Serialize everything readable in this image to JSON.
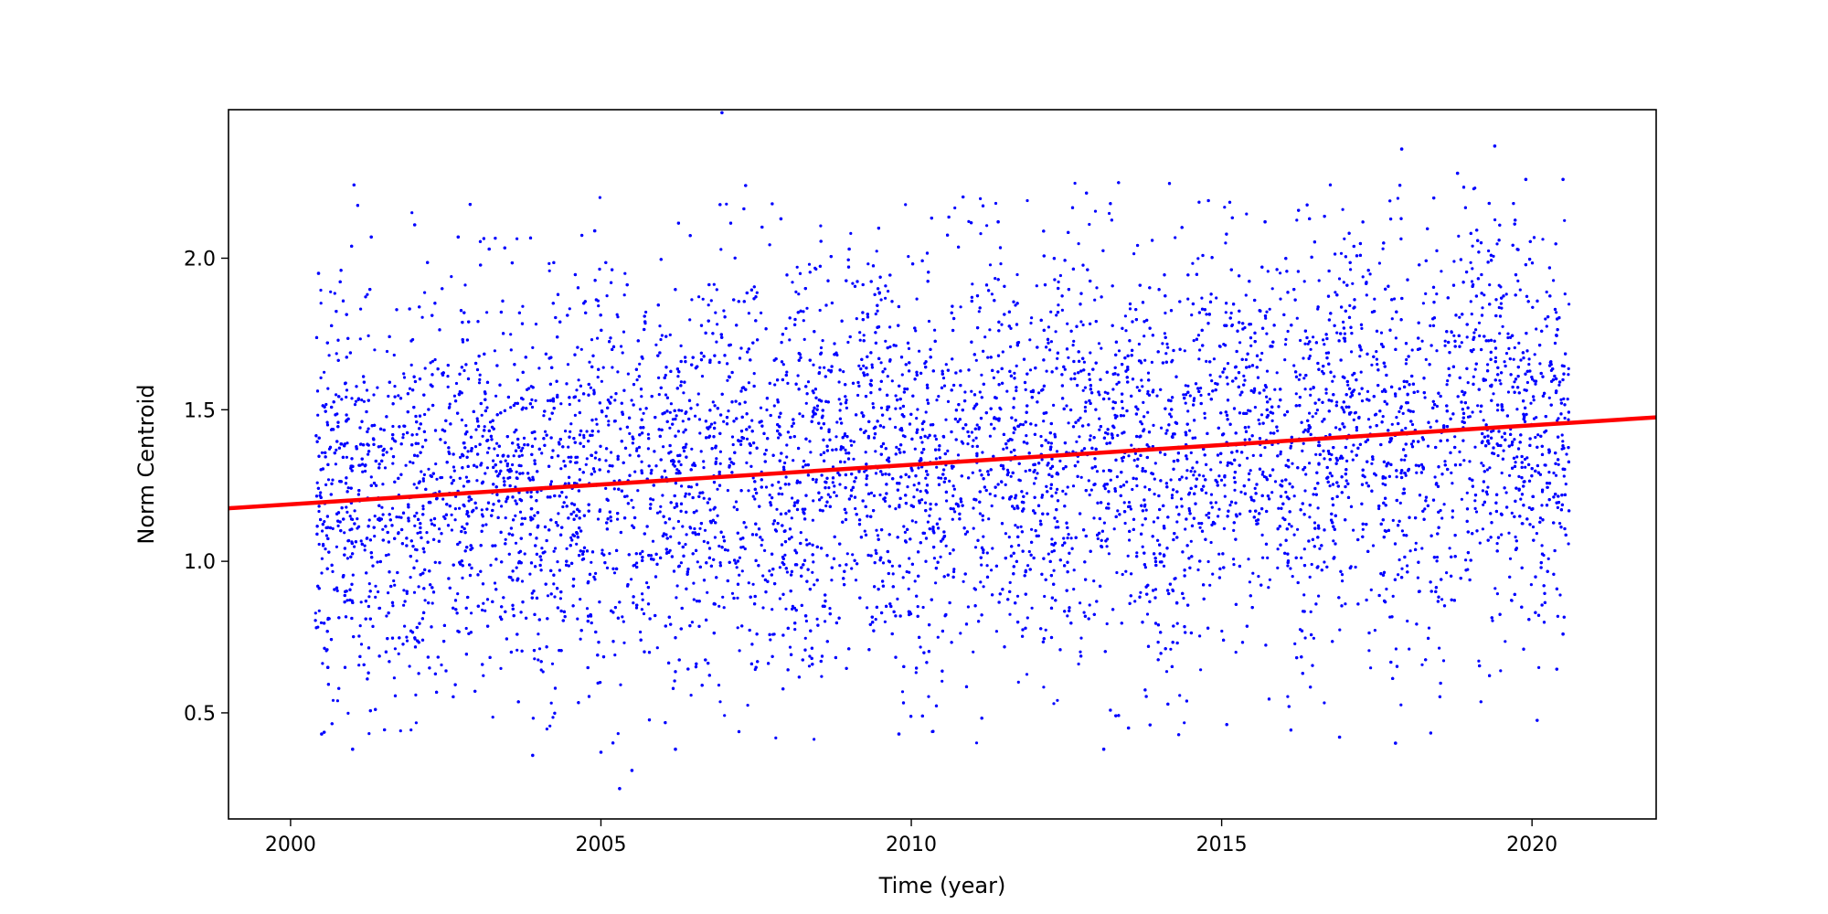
{
  "chart_data": {
    "type": "scatter",
    "title": "",
    "xlabel": "Time (year)",
    "ylabel": "Norm Centroid",
    "xlim": [
      1999.0,
      2022.0
    ],
    "ylim": [
      0.15,
      2.49
    ],
    "xticks": [
      2000,
      2005,
      2010,
      2015,
      2020
    ],
    "xtick_labels": [
      "2000",
      "2005",
      "2010",
      "2015",
      "2020"
    ],
    "yticks": [
      0.5,
      1.0,
      1.5,
      2.0
    ],
    "ytick_labels": [
      "0.5",
      "1.0",
      "1.5",
      "2.0"
    ],
    "grid": false,
    "legend": "none",
    "series": [
      {
        "kind": "scatter",
        "color": "#0000ff",
        "point_count_approx": 12000,
        "x_range": [
          2000.4,
          2020.6
        ],
        "points": [
          [
            2000.45,
            1.95
          ],
          [
            2000.5,
            0.43
          ],
          [
            2000.6,
            0.65
          ],
          [
            2001.0,
            0.38
          ],
          [
            2001.3,
            2.07
          ],
          [
            2002.0,
            2.11
          ],
          [
            2002.7,
            2.07
          ],
          [
            2003.2,
            2.03
          ],
          [
            2003.9,
            0.36
          ],
          [
            2004.9,
            2.09
          ],
          [
            2005.0,
            0.37
          ],
          [
            2005.3,
            0.25
          ],
          [
            2005.5,
            0.31
          ],
          [
            2006.2,
            0.38
          ],
          [
            2006.95,
            2.48
          ],
          [
            2007.9,
            2.13
          ],
          [
            2008.3,
            0.82
          ],
          [
            2009.0,
            2.03
          ],
          [
            2009.8,
            0.43
          ],
          [
            2011.4,
            2.12
          ],
          [
            2013.1,
            0.38
          ],
          [
            2013.5,
            0.45
          ],
          [
            2015.7,
            2.12
          ],
          [
            2016.9,
            0.42
          ],
          [
            2017.8,
            0.4
          ],
          [
            2017.9,
            2.36
          ],
          [
            2018.8,
            2.28
          ],
          [
            2019.4,
            2.37
          ],
          [
            2019.9,
            2.26
          ],
          [
            2020.5,
            2.26
          ],
          [
            2020.5,
            0.76
          ]
        ]
      },
      {
        "kind": "fit_line",
        "color": "#ff0000",
        "x": [
          1999.0,
          2022.0
        ],
        "y": [
          1.175,
          1.475
        ]
      }
    ]
  }
}
